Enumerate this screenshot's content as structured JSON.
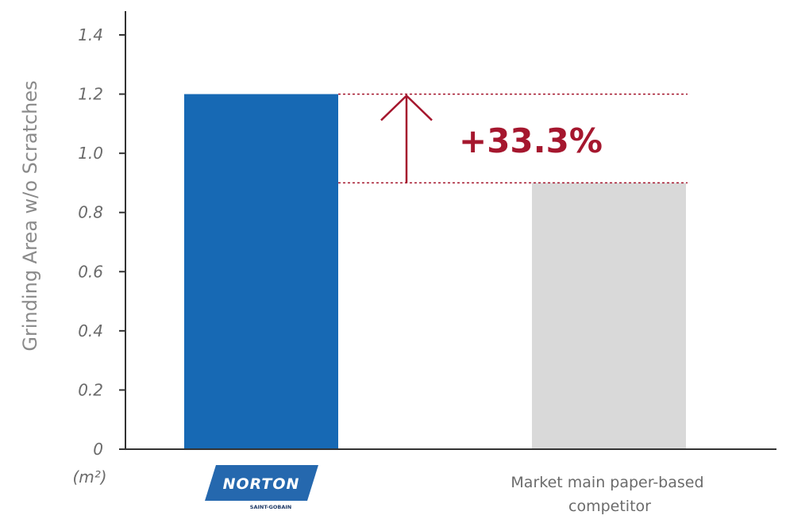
{
  "chart_data": {
    "type": "bar",
    "categories": [
      "NORTON",
      "Market main paper-based competitor"
    ],
    "values": [
      1.2,
      0.9
    ],
    "ylabel": "Grinding Area w/o Scratches",
    "y_unit": "(m²)",
    "ylim": [
      0,
      1.4
    ],
    "yticks": [
      {
        "value": 0,
        "label": "0"
      },
      {
        "value": 0.2,
        "label": "0.2"
      },
      {
        "value": 0.4,
        "label": "0.4"
      },
      {
        "value": 0.6,
        "label": "0.6"
      },
      {
        "value": 0.8,
        "label": "0.8"
      },
      {
        "value": 1.0,
        "label": "1.0"
      },
      {
        "value": 1.2,
        "label": "1.2"
      },
      {
        "value": 1.4,
        "label": "1.4"
      }
    ],
    "competitor_label_lines": [
      "Market main paper-based",
      "competitor"
    ],
    "logo": {
      "main": "NORTON",
      "sub": "SAINT-GOBAIN"
    },
    "annotation": {
      "text": "+33.3%",
      "from": 0.9,
      "to": 1.2
    },
    "grid": false,
    "colors": {
      "norton_bar": "#1769b4",
      "competitor_bar": "#d9d9d9",
      "annotation": "#a5172e",
      "axis": "#333333",
      "logo_bg": "#2568ae"
    }
  }
}
